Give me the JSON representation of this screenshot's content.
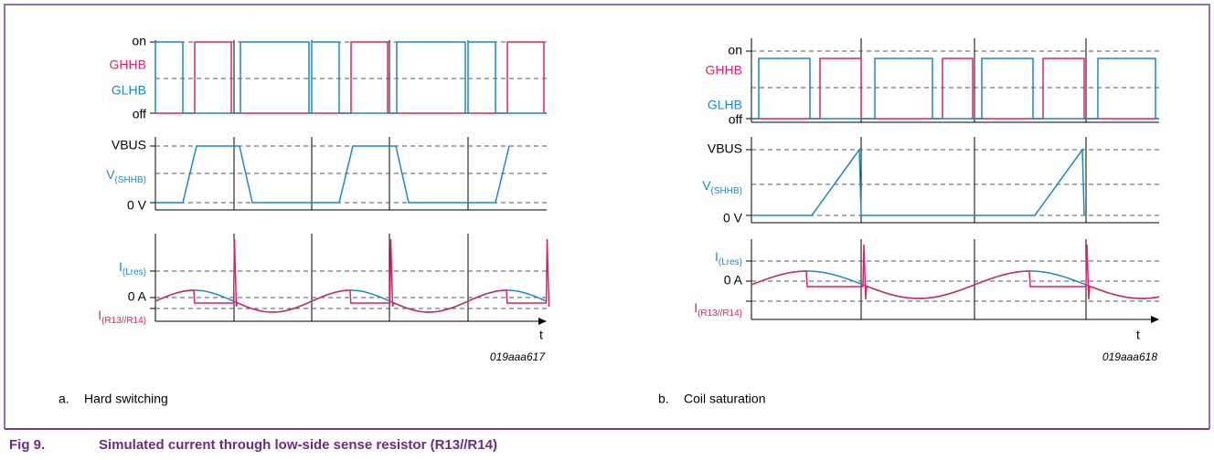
{
  "figures": [
    {
      "labels": {
        "on": "on",
        "ghhb": "GHHB",
        "glhb": "GLHB",
        "off": "off",
        "vbus": "VBUS",
        "vshhb": {
          "base": "V",
          "sub": "(SHHB)"
        },
        "zero_v": "0 V",
        "ilres": {
          "base": "I",
          "sub": "(Lres)"
        },
        "zero_a": "0 A",
        "ir13": {
          "base": "I",
          "sub": "(R13//R14)"
        },
        "t": "t"
      },
      "code": "019aaa617",
      "letter": "a.",
      "sublabel": "Hard switching"
    },
    {
      "labels": {
        "on": "on",
        "ghhb": "GHHB",
        "glhb": "GLHB",
        "off": "off",
        "vbus": "VBUS",
        "vshhb": {
          "base": "V",
          "sub": "(SHHB)"
        },
        "zero_v": "0 V",
        "ilres": {
          "base": "I",
          "sub": "(Lres)"
        },
        "zero_a": "0 A",
        "ir13": {
          "base": "I",
          "sub": "(R13//R14)"
        },
        "t": "t"
      },
      "code": "019aaa618",
      "letter": "b.",
      "sublabel": "Coil saturation"
    }
  ],
  "caption": {
    "number": "Fig 9.",
    "text": "Simulated current through low-side sense resistor (R13//R14)"
  }
}
